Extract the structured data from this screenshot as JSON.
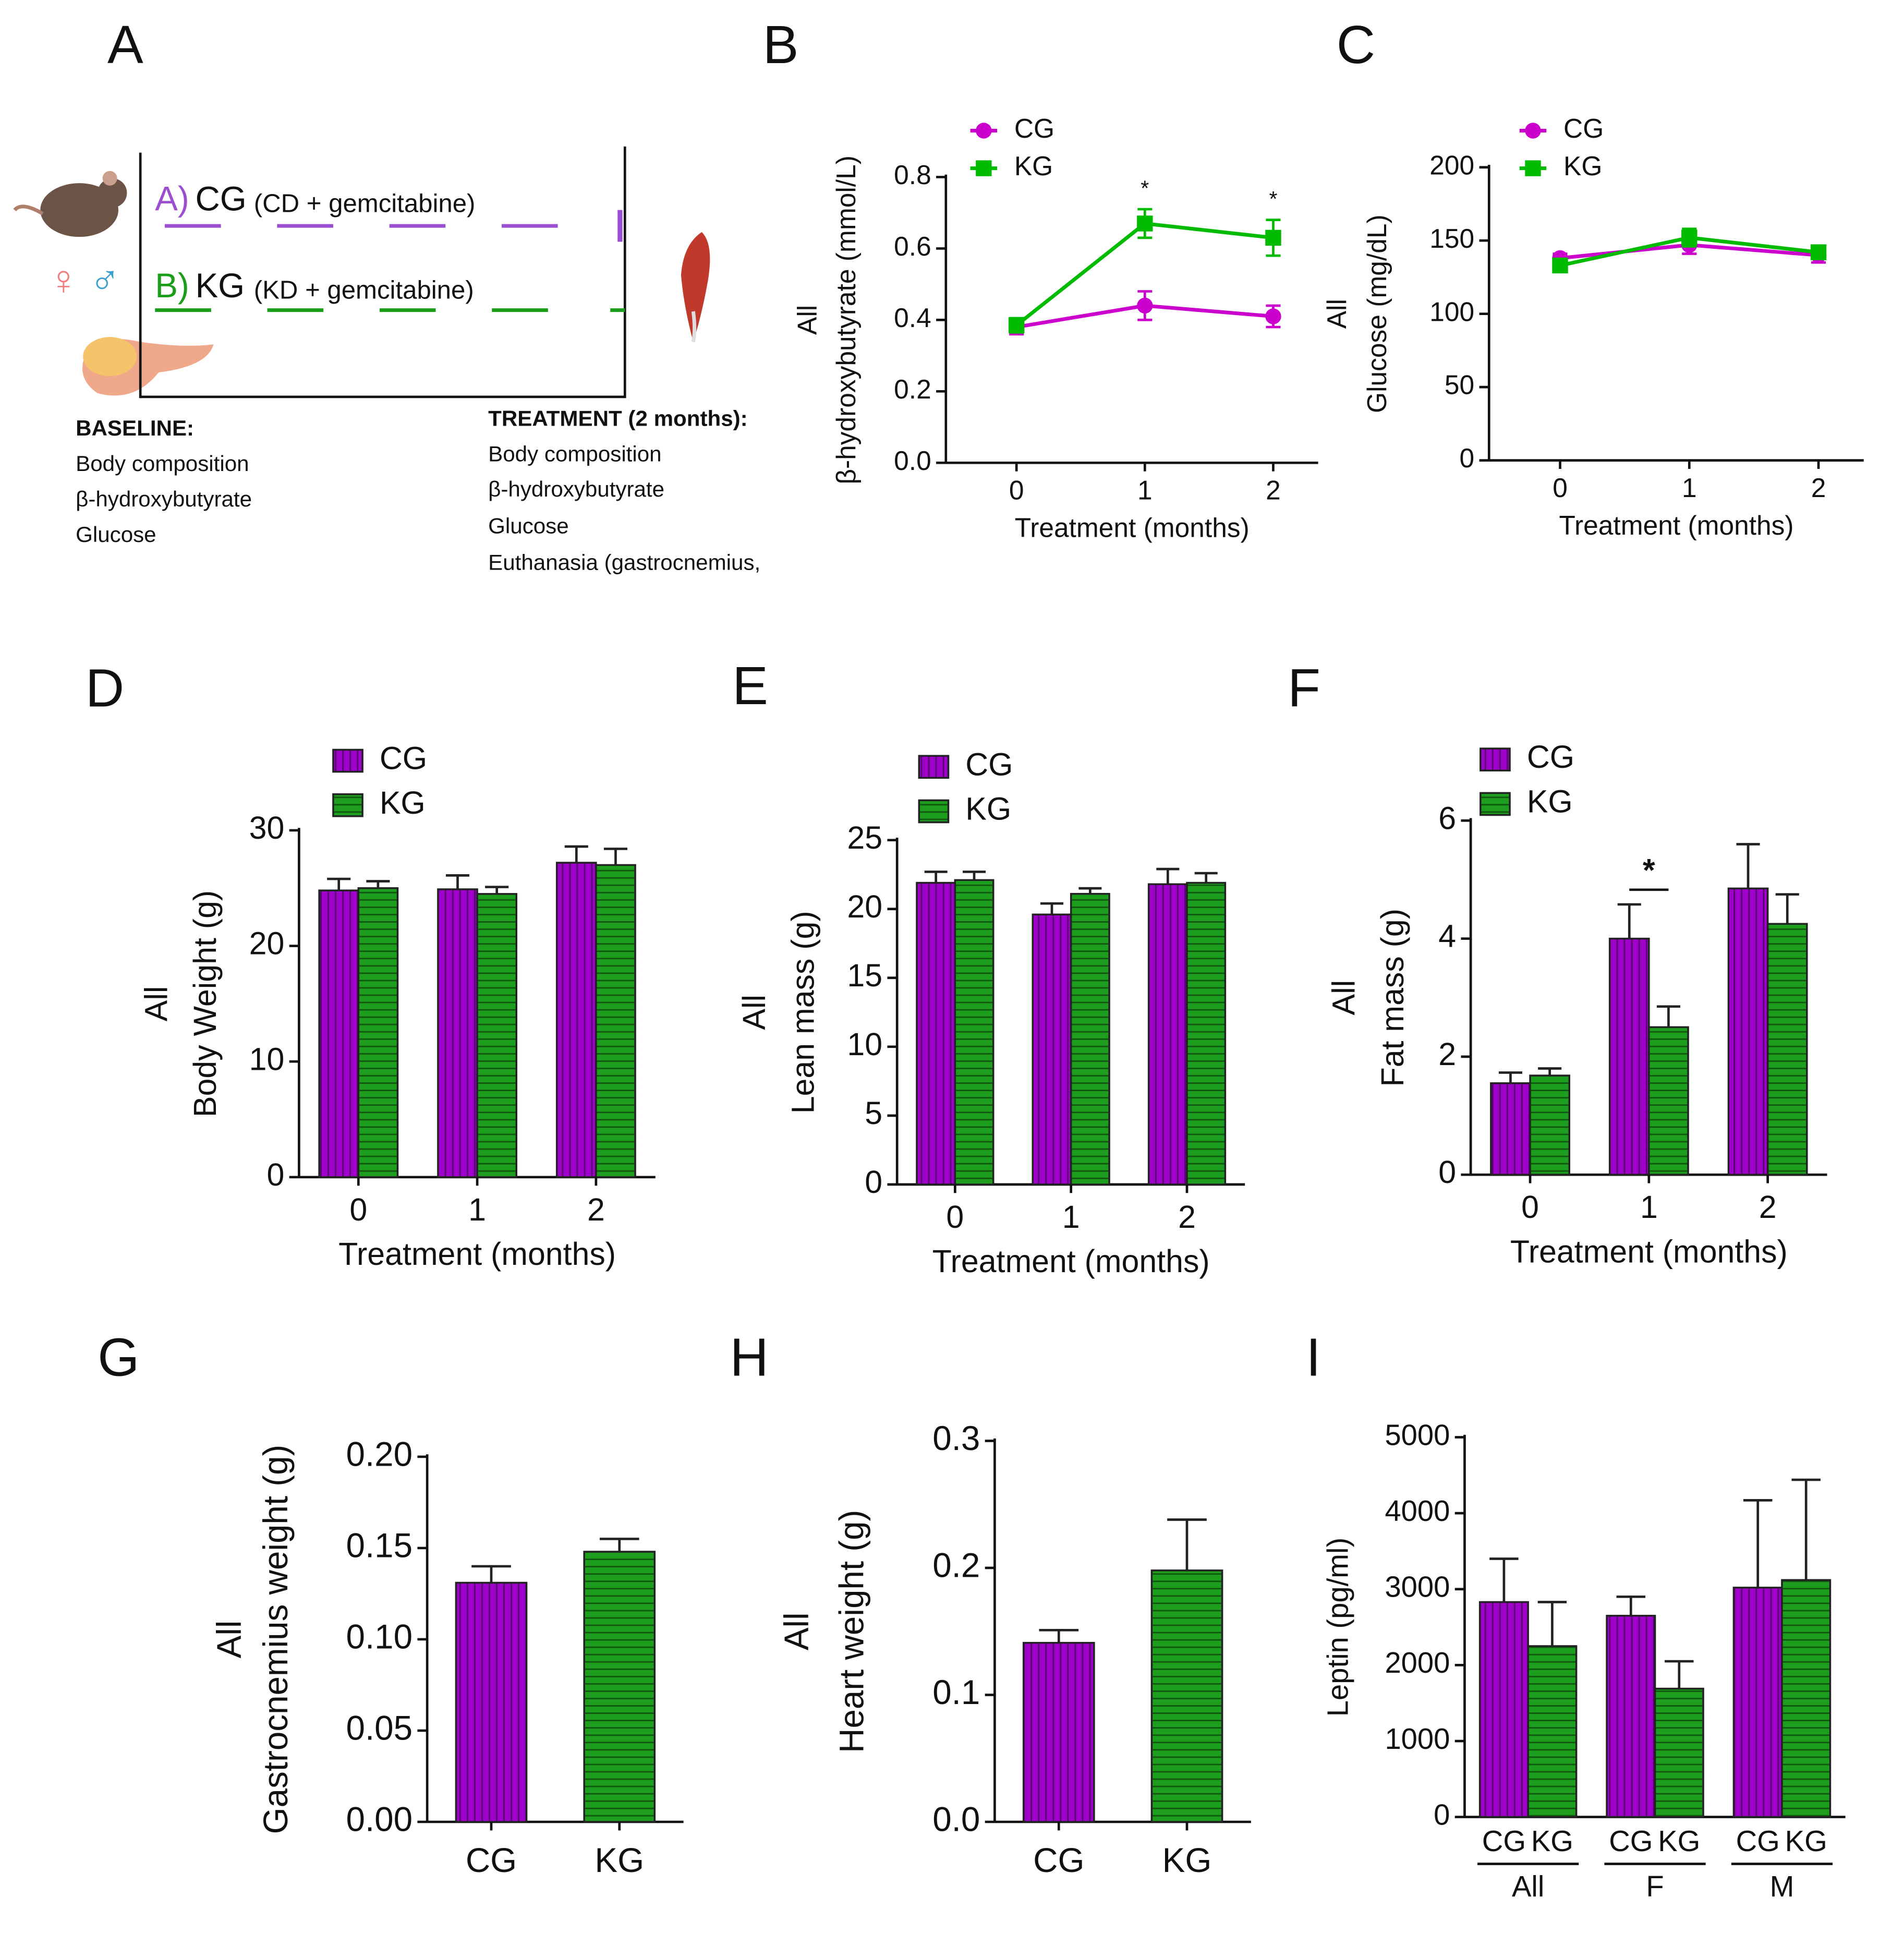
{
  "diagram": {
    "panel": "A",
    "group_a": {
      "prefix": "A)",
      "name": "CG",
      "detail": "(CD + gemcitabine)"
    },
    "group_b": {
      "prefix": "B)",
      "name": "KG",
      "detail": "(KD + gemcitabine)"
    },
    "sexes": [
      "♀",
      "♂"
    ],
    "baseline": {
      "title": "BASELINE:",
      "items": [
        "Body composition",
        "β-hydroxybutyrate",
        "Glucose"
      ]
    },
    "treatment": {
      "title": "TREATMENT (2 months):",
      "items": [
        "Body composition",
        "β-hydroxybutyrate",
        "Glucose",
        "Euthanasia (gastrocnemius,"
      ]
    }
  },
  "chart_data": [
    {
      "type": "line",
      "panel": "B",
      "group_label": "All",
      "ylabel": "β-hydroxybutyrate (mmol/L)",
      "xlabel": "Treatment (months)",
      "x": [
        0,
        1,
        2
      ],
      "xlim": [
        -0.55,
        2.35
      ],
      "xticks": [
        0,
        1,
        2
      ],
      "ylim": [
        0,
        0.8
      ],
      "yticks": [
        {
          "value": 0,
          "label": "0.0"
        },
        {
          "value": 0.2,
          "label": "0.2"
        },
        {
          "value": 0.4,
          "label": "0.4"
        },
        {
          "value": 0.6,
          "label": "0.6"
        },
        {
          "value": 0.8,
          "label": "0.8"
        }
      ],
      "legend": true,
      "series": [
        {
          "name": "CG",
          "color": "#cc00cc",
          "marker": "circle",
          "values": [
            0.38,
            0.44,
            0.41
          ],
          "errors": [
            0.02,
            0.04,
            0.03
          ]
        },
        {
          "name": "KG",
          "color": "#00bb00",
          "marker": "square",
          "values": [
            0.385,
            0.67,
            0.63
          ],
          "errors": [
            0.02,
            0.04,
            0.05
          ]
        }
      ],
      "annotations": [
        {
          "text": "*",
          "x": 1
        },
        {
          "text": "*",
          "x": 2
        }
      ]
    },
    {
      "type": "line",
      "panel": "C",
      "group_label": "All",
      "ylabel": "Glucose (mg/dL)",
      "xlabel": "Treatment (months)",
      "x": [
        0,
        1,
        2
      ],
      "xlim": [
        -0.55,
        2.35
      ],
      "xticks": [
        0,
        1,
        2
      ],
      "ylim": [
        0,
        200
      ],
      "yticks": [
        0,
        50,
        100,
        150,
        200
      ],
      "legend": true,
      "series": [
        {
          "name": "CG",
          "color": "#cc00cc",
          "marker": "circle",
          "values": [
            138,
            147,
            140
          ],
          "errors": [
            3,
            6,
            5
          ]
        },
        {
          "name": "KG",
          "color": "#00bb00",
          "marker": "square",
          "values": [
            133,
            152,
            142
          ],
          "errors": [
            3,
            6,
            4
          ]
        }
      ]
    },
    {
      "type": "bar",
      "panel": "D",
      "group_label": "All",
      "ylabel": "Body Weight (g)",
      "xlabel": "Treatment (months)",
      "categories": [
        "0",
        "1",
        "2"
      ],
      "ylim": [
        0,
        30
      ],
      "yticks": [
        0,
        10,
        20,
        30
      ],
      "legend": true,
      "series": [
        {
          "name": "CG",
          "color": "#a000cc",
          "hatch": "vertical",
          "values": [
            24.8,
            24.9,
            27.2
          ],
          "errors": [
            1,
            1.2,
            1.4
          ]
        },
        {
          "name": "KG",
          "color": "#1e9e1e",
          "hatch": "horizontal",
          "values": [
            25,
            24.5,
            27
          ],
          "errors": [
            0.6,
            0.6,
            1.4
          ]
        }
      ]
    },
    {
      "type": "bar",
      "panel": "E",
      "group_label": "All",
      "ylabel": "Lean mass (g)",
      "xlabel": "Treatment (months)",
      "categories": [
        "0",
        "1",
        "2"
      ],
      "ylim": [
        0,
        25
      ],
      "yticks": [
        0,
        5,
        10,
        15,
        20,
        25
      ],
      "legend": true,
      "series": [
        {
          "name": "CG",
          "color": "#a000cc",
          "hatch": "vertical",
          "values": [
            21.9,
            19.6,
            21.8
          ],
          "errors": [
            0.8,
            0.8,
            1.1
          ]
        },
        {
          "name": "KG",
          "color": "#1e9e1e",
          "hatch": "horizontal",
          "values": [
            22.1,
            21.1,
            21.9
          ],
          "errors": [
            0.6,
            0.4,
            0.7
          ]
        }
      ]
    },
    {
      "type": "bar",
      "panel": "F",
      "group_label": "All",
      "ylabel": "Fat mass (g)",
      "xlabel": "Treatment (months)",
      "categories": [
        "0",
        "1",
        "2"
      ],
      "ylim": [
        0,
        6
      ],
      "yticks": [
        0,
        2,
        4,
        6
      ],
      "legend": true,
      "series": [
        {
          "name": "CG",
          "color": "#a000cc",
          "hatch": "vertical",
          "values": [
            1.55,
            4.0,
            4.85
          ],
          "errors": [
            0.18,
            0.58,
            0.75
          ]
        },
        {
          "name": "KG",
          "color": "#1e9e1e",
          "hatch": "horizontal",
          "values": [
            1.68,
            2.5,
            4.25
          ],
          "errors": [
            0.12,
            0.35,
            0.5
          ]
        }
      ],
      "annotations": [
        {
          "text": "*",
          "category": "1"
        }
      ]
    },
    {
      "type": "bar",
      "panel": "G",
      "group_label": "All",
      "ylabel": "Gastrocnemius weight (g)",
      "categories": [
        "CG",
        "KG"
      ],
      "values": [
        0.131,
        0.148
      ],
      "errors": [
        0.009,
        0.007
      ],
      "colors": [
        "#a000cc",
        "#1e9e1e"
      ],
      "hatch": [
        "vertical",
        "horizontal"
      ],
      "ylim": [
        0,
        0.2
      ],
      "yticks": [
        {
          "value": 0,
          "label": "0.00"
        },
        {
          "value": 0.05,
          "label": "0.05"
        },
        {
          "value": 0.1,
          "label": "0.10"
        },
        {
          "value": 0.15,
          "label": "0.15"
        },
        {
          "value": 0.2,
          "label": "0.20"
        }
      ]
    },
    {
      "type": "bar",
      "panel": "H",
      "group_label": "All",
      "ylabel": "Heart weight (g)",
      "categories": [
        "CG",
        "KG"
      ],
      "values": [
        0.141,
        0.198
      ],
      "errors": [
        0.01,
        0.04
      ],
      "colors": [
        "#a000cc",
        "#1e9e1e"
      ],
      "hatch": [
        "vertical",
        "horizontal"
      ],
      "ylim": [
        0,
        0.3
      ],
      "yticks": [
        {
          "value": 0,
          "label": "0.0"
        },
        {
          "value": 0.1,
          "label": "0.1"
        },
        {
          "value": 0.2,
          "label": "0.2"
        },
        {
          "value": 0.3,
          "label": "0.3"
        }
      ]
    },
    {
      "type": "bar",
      "panel": "I",
      "ylabel": "Leptin (pg/ml)",
      "sublabels": true,
      "categories": [
        "All",
        "F",
        "M"
      ],
      "ylim": [
        0,
        5000
      ],
      "yticks": [
        0,
        1000,
        2000,
        3000,
        4000,
        5000
      ],
      "series": [
        {
          "name": "CG",
          "color": "#a000cc",
          "hatch": "vertical",
          "values": [
            2830,
            2650,
            3020
          ],
          "errors": [
            570,
            250,
            1150
          ]
        },
        {
          "name": "KG",
          "color": "#1e9e1e",
          "hatch": "horizontal",
          "values": [
            2250,
            1690,
            3120
          ],
          "errors": [
            580,
            360,
            1320
          ]
        }
      ]
    }
  ]
}
